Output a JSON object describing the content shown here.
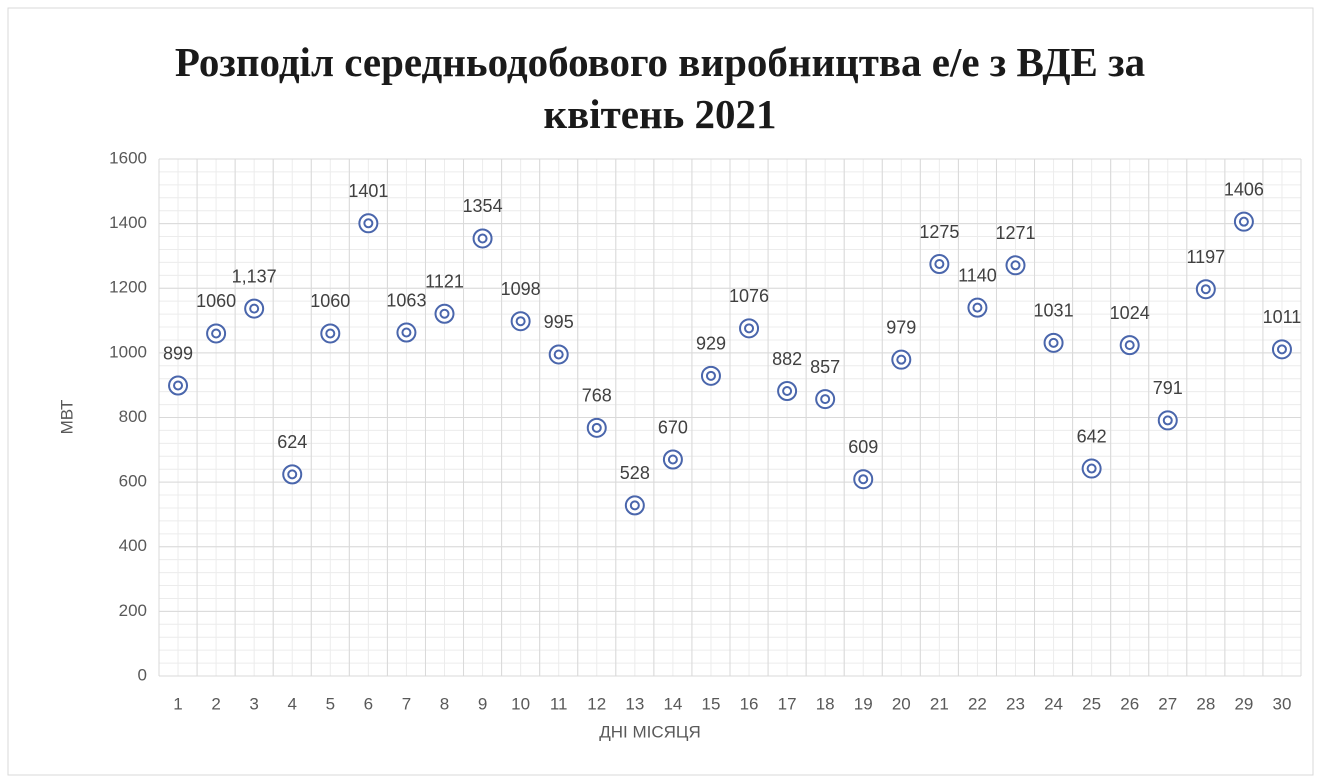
{
  "chart_data": {
    "type": "scatter",
    "title": "Розподіл середньодобового виробництва е/е з ВДЕ за квітень 2021",
    "x_label": "ДНІ МІСЯЦЯ",
    "y_label": "МВТ",
    "categories": [
      1,
      2,
      3,
      4,
      5,
      6,
      7,
      8,
      9,
      10,
      11,
      12,
      13,
      14,
      15,
      16,
      17,
      18,
      19,
      20,
      21,
      22,
      23,
      24,
      25,
      26,
      27,
      28,
      29,
      30
    ],
    "values": [
      899,
      1060,
      1137,
      624,
      1060,
      1401,
      1063,
      1121,
      1354,
      1098,
      995,
      768,
      528,
      670,
      929,
      1076,
      882,
      857,
      609,
      979,
      1275,
      1140,
      1271,
      1031,
      642,
      1024,
      791,
      1197,
      1406,
      1011
    ],
    "value_labels": [
      "899",
      "1060",
      "1,137",
      "624",
      "1060",
      "1401",
      "1063",
      "1121",
      "1354",
      "1098",
      "995",
      "768",
      "528",
      "670",
      "929",
      "1076",
      "882",
      "857",
      "609",
      "979",
      "1275",
      "1140",
      "1271",
      "1031",
      "642",
      "1024",
      "791",
      "1197",
      "1406",
      "1011"
    ],
    "color": "#4a66ac",
    "ylim": [
      0,
      1600
    ],
    "yticks": [
      0,
      200,
      400,
      600,
      800,
      1000,
      1200,
      1400,
      1600
    ],
    "grid": true
  }
}
